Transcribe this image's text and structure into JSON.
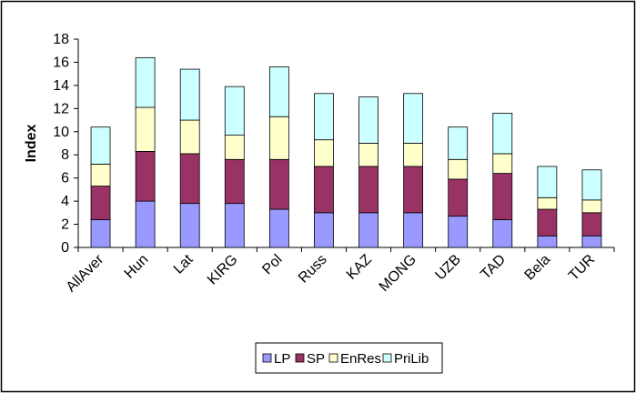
{
  "chart_data": {
    "type": "bar",
    "stacked": true,
    "title": "",
    "xlabel": "",
    "ylabel": "Index",
    "ylim": [
      0,
      18
    ],
    "yticks": [
      0,
      2,
      4,
      6,
      8,
      10,
      12,
      14,
      16,
      18
    ],
    "grid": false,
    "legend_position": "bottom",
    "categories": [
      "AllAver",
      "Hun",
      "Lat",
      "KIRG",
      "Pol",
      "Russ",
      "KAZ",
      "MONG",
      "UZB",
      "TAD",
      "Bela",
      "TUR"
    ],
    "series": [
      {
        "name": "LP",
        "color": "#9999ff",
        "values": [
          2.4,
          4.0,
          3.8,
          3.8,
          3.3,
          3.0,
          3.0,
          3.0,
          2.7,
          2.4,
          1.0,
          1.0
        ]
      },
      {
        "name": "SP",
        "color": "#993366",
        "values": [
          2.9,
          4.3,
          4.3,
          3.8,
          4.3,
          4.0,
          4.0,
          4.0,
          3.2,
          4.0,
          2.3,
          2.0
        ]
      },
      {
        "name": "EnRes",
        "color": "#ffffcc",
        "values": [
          1.9,
          3.8,
          2.9,
          2.1,
          3.7,
          2.3,
          2.0,
          2.0,
          1.7,
          1.7,
          1.0,
          1.1
        ]
      },
      {
        "name": "PriLib",
        "color": "#ccffff",
        "values": [
          3.2,
          4.3,
          4.4,
          4.2,
          4.3,
          4.0,
          4.0,
          4.3,
          2.8,
          3.5,
          2.7,
          2.6
        ]
      }
    ]
  }
}
